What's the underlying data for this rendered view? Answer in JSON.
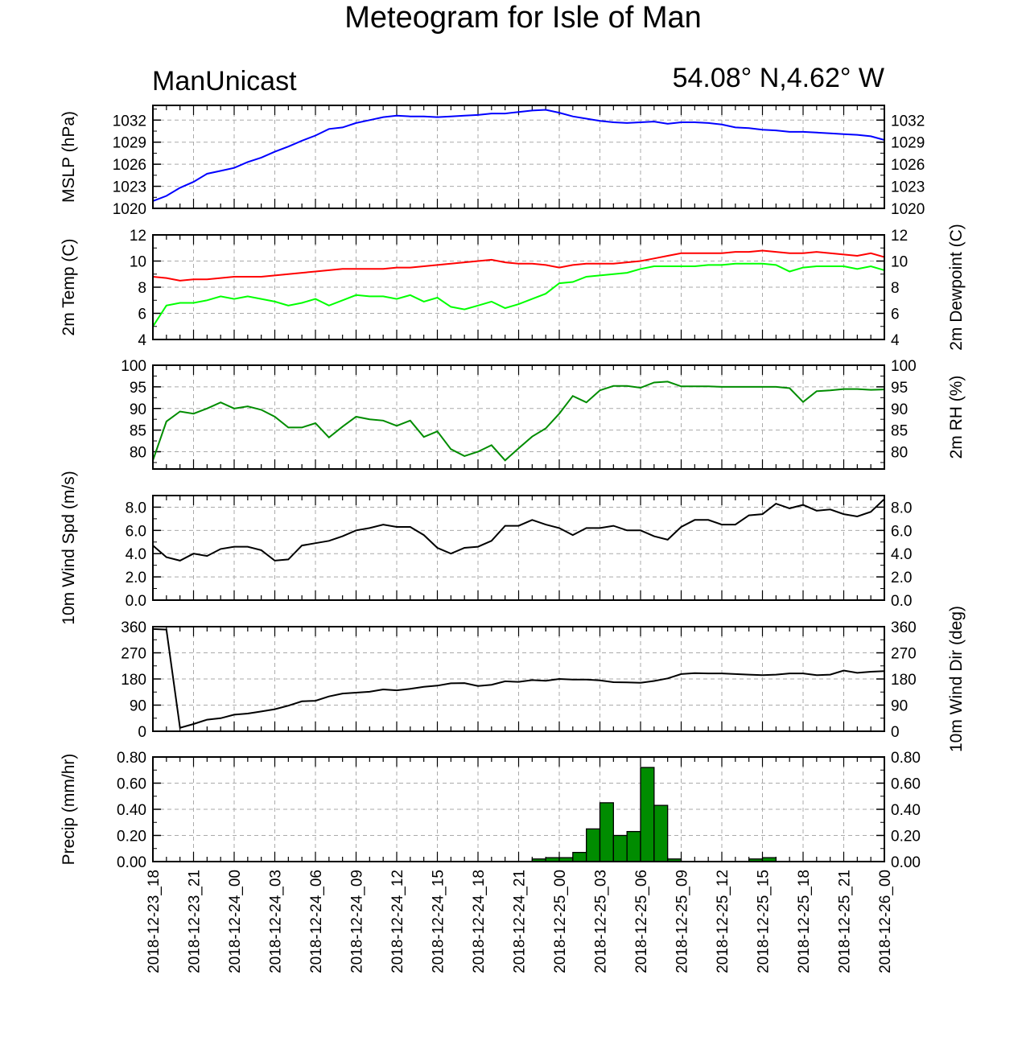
{
  "title": "Meteogram for Isle of Man",
  "subtitle_left": "ManUnicast",
  "subtitle_right": "54.08° N,4.62° W",
  "x_tick_labels": [
    "2018-12-23_18",
    "2018-12-23_21",
    "2018-12-24_00",
    "2018-12-24_03",
    "2018-12-24_06",
    "2018-12-24_09",
    "2018-12-24_12",
    "2018-12-24_15",
    "2018-12-24_18",
    "2018-12-24_21",
    "2018-12-25_00",
    "2018-12-25_03",
    "2018-12-25_06",
    "2018-12-25_09",
    "2018-12-25_12",
    "2018-12-25_15",
    "2018-12-25_18",
    "2018-12-25_21",
    "2018-12-26_00"
  ],
  "chart_data": [
    {
      "type": "line",
      "ylabel": "MSLP (hPa)",
      "ylim": [
        1020,
        1034
      ],
      "yticks": [
        1020,
        1023,
        1026,
        1029,
        1032
      ],
      "ytick_labels": [
        "1020",
        "1023",
        "1026",
        "1029",
        "1032"
      ],
      "grid": true,
      "x_hours_from_2018-12-23_18": [
        0,
        1,
        2,
        3,
        4,
        5,
        6,
        7,
        8,
        9,
        10,
        11,
        12,
        13,
        14,
        15,
        16,
        17,
        18,
        19,
        20,
        21,
        22,
        23,
        24,
        25,
        26,
        27,
        28,
        29,
        30,
        31,
        32,
        33,
        34,
        35,
        36,
        37,
        38,
        39,
        40,
        41,
        42,
        43,
        44,
        45,
        46,
        47,
        48,
        49,
        50,
        51,
        52,
        53,
        54
      ],
      "series": [
        {
          "color": "#0000ff",
          "values": [
            1021.0,
            1021.7,
            1022.8,
            1023.6,
            1024.7,
            1025.1,
            1025.5,
            1026.3,
            1026.9,
            1027.7,
            1028.4,
            1029.2,
            1029.9,
            1030.8,
            1031.0,
            1031.6,
            1032.0,
            1032.4,
            1032.6,
            1032.5,
            1032.5,
            1032.4,
            1032.5,
            1032.6,
            1032.7,
            1032.9,
            1032.9,
            1033.1,
            1033.3,
            1033.4,
            1033.0,
            1032.5,
            1032.2,
            1031.9,
            1031.7,
            1031.6,
            1031.7,
            1031.8,
            1031.5,
            1031.7,
            1031.7,
            1031.6,
            1031.4,
            1031.0,
            1030.9,
            1030.7,
            1030.6,
            1030.4,
            1030.4,
            1030.3,
            1030.2,
            1030.1,
            1030.0,
            1029.8,
            1029.3
          ]
        }
      ]
    },
    {
      "type": "line",
      "ylabel": "2m Temp (C)",
      "ylabel_right": "2m Dewpoint (C)",
      "ylim": [
        4,
        12
      ],
      "yticks": [
        4,
        6,
        8,
        10,
        12
      ],
      "ytick_labels": [
        "4",
        "6",
        "8",
        "10",
        "12"
      ],
      "grid": true,
      "series": [
        {
          "color": "#ff0000",
          "values": [
            8.8,
            8.7,
            8.5,
            8.6,
            8.6,
            8.7,
            8.8,
            8.8,
            8.8,
            8.9,
            9.0,
            9.1,
            9.2,
            9.3,
            9.4,
            9.4,
            9.4,
            9.4,
            9.5,
            9.5,
            9.6,
            9.7,
            9.8,
            9.9,
            10.0,
            10.1,
            9.9,
            9.8,
            9.8,
            9.7,
            9.5,
            9.7,
            9.8,
            9.8,
            9.8,
            9.9,
            10.0,
            10.2,
            10.4,
            10.6,
            10.6,
            10.6,
            10.6,
            10.7,
            10.7,
            10.8,
            10.7,
            10.6,
            10.6,
            10.7,
            10.6,
            10.5,
            10.4,
            10.6,
            10.3
          ]
        },
        {
          "color": "#00ff00",
          "values": [
            5.0,
            6.6,
            6.8,
            6.8,
            7.0,
            7.3,
            7.1,
            7.3,
            7.1,
            6.9,
            6.6,
            6.8,
            7.1,
            6.6,
            7.0,
            7.4,
            7.3,
            7.3,
            7.1,
            7.4,
            6.9,
            7.2,
            6.5,
            6.3,
            6.6,
            6.9,
            6.4,
            6.7,
            7.1,
            7.5,
            8.3,
            8.4,
            8.8,
            8.9,
            9.0,
            9.1,
            9.4,
            9.6,
            9.6,
            9.6,
            9.6,
            9.7,
            9.7,
            9.8,
            9.8,
            9.8,
            9.7,
            9.2,
            9.5,
            9.6,
            9.6,
            9.6,
            9.4,
            9.6,
            9.3
          ]
        }
      ]
    },
    {
      "type": "line",
      "ylabel_right": "2m RH (%)",
      "ylim": [
        76,
        100
      ],
      "yticks": [
        80,
        85,
        90,
        95,
        100
      ],
      "ytick_labels": [
        "80",
        "85",
        "90",
        "95",
        "100"
      ],
      "grid": true,
      "series": [
        {
          "color": "#008c00",
          "values": [
            78.0,
            87.0,
            89.3,
            88.8,
            90.0,
            91.4,
            90.0,
            90.5,
            89.7,
            88.1,
            85.6,
            85.6,
            86.6,
            83.3,
            85.8,
            88.1,
            87.5,
            87.2,
            86.0,
            87.2,
            83.4,
            84.7,
            80.6,
            79.0,
            80.0,
            81.5,
            78.0,
            80.8,
            83.5,
            85.4,
            88.8,
            92.9,
            91.4,
            94.2,
            95.2,
            95.2,
            94.8,
            96.0,
            96.2,
            95.1,
            95.1,
            95.1,
            95.0,
            95.0,
            95.0,
            95.0,
            95.0,
            94.7,
            91.5,
            94.0,
            94.2,
            94.5,
            94.5,
            94.3,
            94.4
          ]
        }
      ]
    },
    {
      "type": "line",
      "ylabel": "10m Wind Spd (m/s)",
      "ylim": [
        0,
        9
      ],
      "yticks": [
        0,
        2,
        4,
        6,
        8
      ],
      "ytick_labels": [
        "0.0",
        "2.0",
        "4.0",
        "6.0",
        "8.0"
      ],
      "grid": true,
      "series": [
        {
          "color": "#000000",
          "values": [
            4.7,
            3.7,
            3.4,
            4.0,
            3.8,
            4.4,
            4.6,
            4.6,
            4.3,
            3.4,
            3.5,
            4.7,
            4.9,
            5.1,
            5.5,
            6.0,
            6.2,
            6.5,
            6.3,
            6.3,
            5.6,
            4.5,
            4.0,
            4.5,
            4.6,
            5.1,
            6.4,
            6.4,
            6.9,
            6.5,
            6.2,
            5.6,
            6.2,
            6.2,
            6.4,
            6.0,
            6.0,
            5.5,
            5.2,
            6.3,
            6.9,
            6.9,
            6.5,
            6.5,
            7.3,
            7.4,
            8.3,
            7.9,
            8.2,
            7.7,
            7.8,
            7.4,
            7.2,
            7.6,
            8.7
          ]
        }
      ]
    },
    {
      "type": "line",
      "ylabel_right": "10m Wind Dir (deg)",
      "ylim": [
        0,
        360
      ],
      "yticks": [
        0,
        90,
        180,
        270,
        360
      ],
      "ytick_labels": [
        "0",
        "90",
        "180",
        "270",
        "360"
      ],
      "grid": true,
      "series": [
        {
          "color": "#000000",
          "values": [
            352,
            350,
            12,
            25,
            40,
            45,
            57,
            61,
            68,
            76,
            88,
            103,
            105,
            120,
            130,
            133,
            136,
            144,
            141,
            146,
            153,
            157,
            165,
            166,
            156,
            160,
            172,
            170,
            176,
            174,
            180,
            178,
            178,
            175,
            169,
            168,
            167,
            173,
            182,
            197,
            200,
            199,
            199,
            197,
            195,
            193,
            195,
            199,
            199,
            193,
            195,
            209,
            201,
            205,
            207
          ]
        }
      ]
    },
    {
      "type": "bar",
      "ylabel": "Precip (mm/hr)",
      "ylim": [
        0,
        0.8
      ],
      "yticks": [
        0,
        0.2,
        0.4,
        0.6,
        0.8
      ],
      "ytick_labels": [
        "0.00",
        "0.20",
        "0.40",
        "0.60",
        "0.80"
      ],
      "grid": true,
      "bar_color": "#008c00",
      "x_hours_from_2018-12-23_18": [
        29,
        30,
        31,
        32,
        33,
        34,
        35,
        36,
        37,
        38,
        39,
        45,
        46
      ],
      "values": [
        0.02,
        0.03,
        0.03,
        0.07,
        0.25,
        0.45,
        0.2,
        0.23,
        0.72,
        0.43,
        0.02,
        0.02,
        0.03
      ]
    }
  ]
}
